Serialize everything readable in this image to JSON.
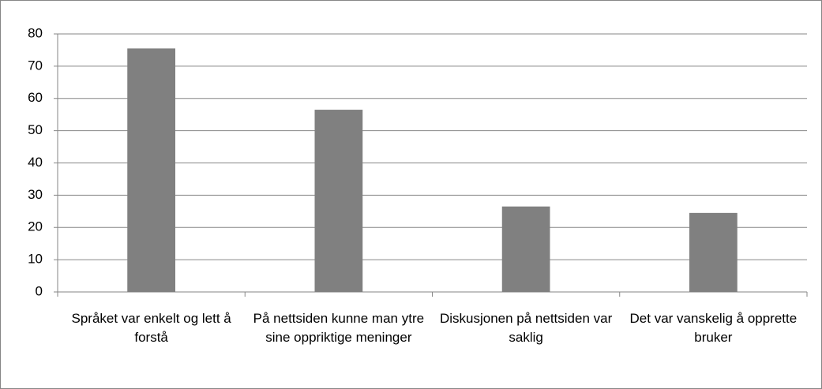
{
  "chart_data": {
    "type": "bar",
    "categories": [
      "Språket var enkelt og lett å forstå",
      "På nettsiden kunne man ytre sine oppriktige meninger",
      "Diskusjonen på nettsiden var saklig",
      "Det var vanskelig å opprette bruker"
    ],
    "values": [
      75.5,
      56.5,
      26.5,
      24.5
    ],
    "color": "#808080",
    "ylim": [
      0,
      80
    ],
    "yticks": [
      0,
      10,
      20,
      30,
      40,
      50,
      60,
      70,
      80
    ],
    "grid": true
  }
}
